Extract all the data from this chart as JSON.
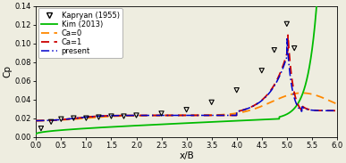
{
  "title": "",
  "xlabel": "x/B",
  "ylabel": "Cp",
  "xlim": [
    0,
    6
  ],
  "ylim": [
    0,
    0.14
  ],
  "yticks": [
    0,
    0.02,
    0.04,
    0.06,
    0.08,
    0.1,
    0.12,
    0.14
  ],
  "xticks": [
    0,
    0.5,
    1.0,
    1.5,
    2.0,
    2.5,
    3.0,
    3.5,
    4.0,
    4.5,
    5.0,
    5.5,
    6.0
  ],
  "kapryan_x": [
    0.1,
    0.3,
    0.5,
    0.75,
    1.0,
    1.25,
    1.5,
    1.75,
    2.0,
    2.5,
    3.0,
    3.5,
    4.0,
    4.5,
    4.75,
    5.0,
    5.15
  ],
  "kapryan_y": [
    0.009,
    0.016,
    0.019,
    0.02,
    0.02,
    0.021,
    0.022,
    0.022,
    0.023,
    0.025,
    0.029,
    0.037,
    0.05,
    0.071,
    0.093,
    0.121,
    0.095
  ],
  "kim_color": "#00bb00",
  "ca0_color": "#ff8800",
  "ca1_color": "#cc0000",
  "present_color": "#0000cc",
  "background_color": "#eeede0",
  "legend_fontsize": 6.0,
  "axis_fontsize": 7.5,
  "tick_fontsize": 6.0
}
